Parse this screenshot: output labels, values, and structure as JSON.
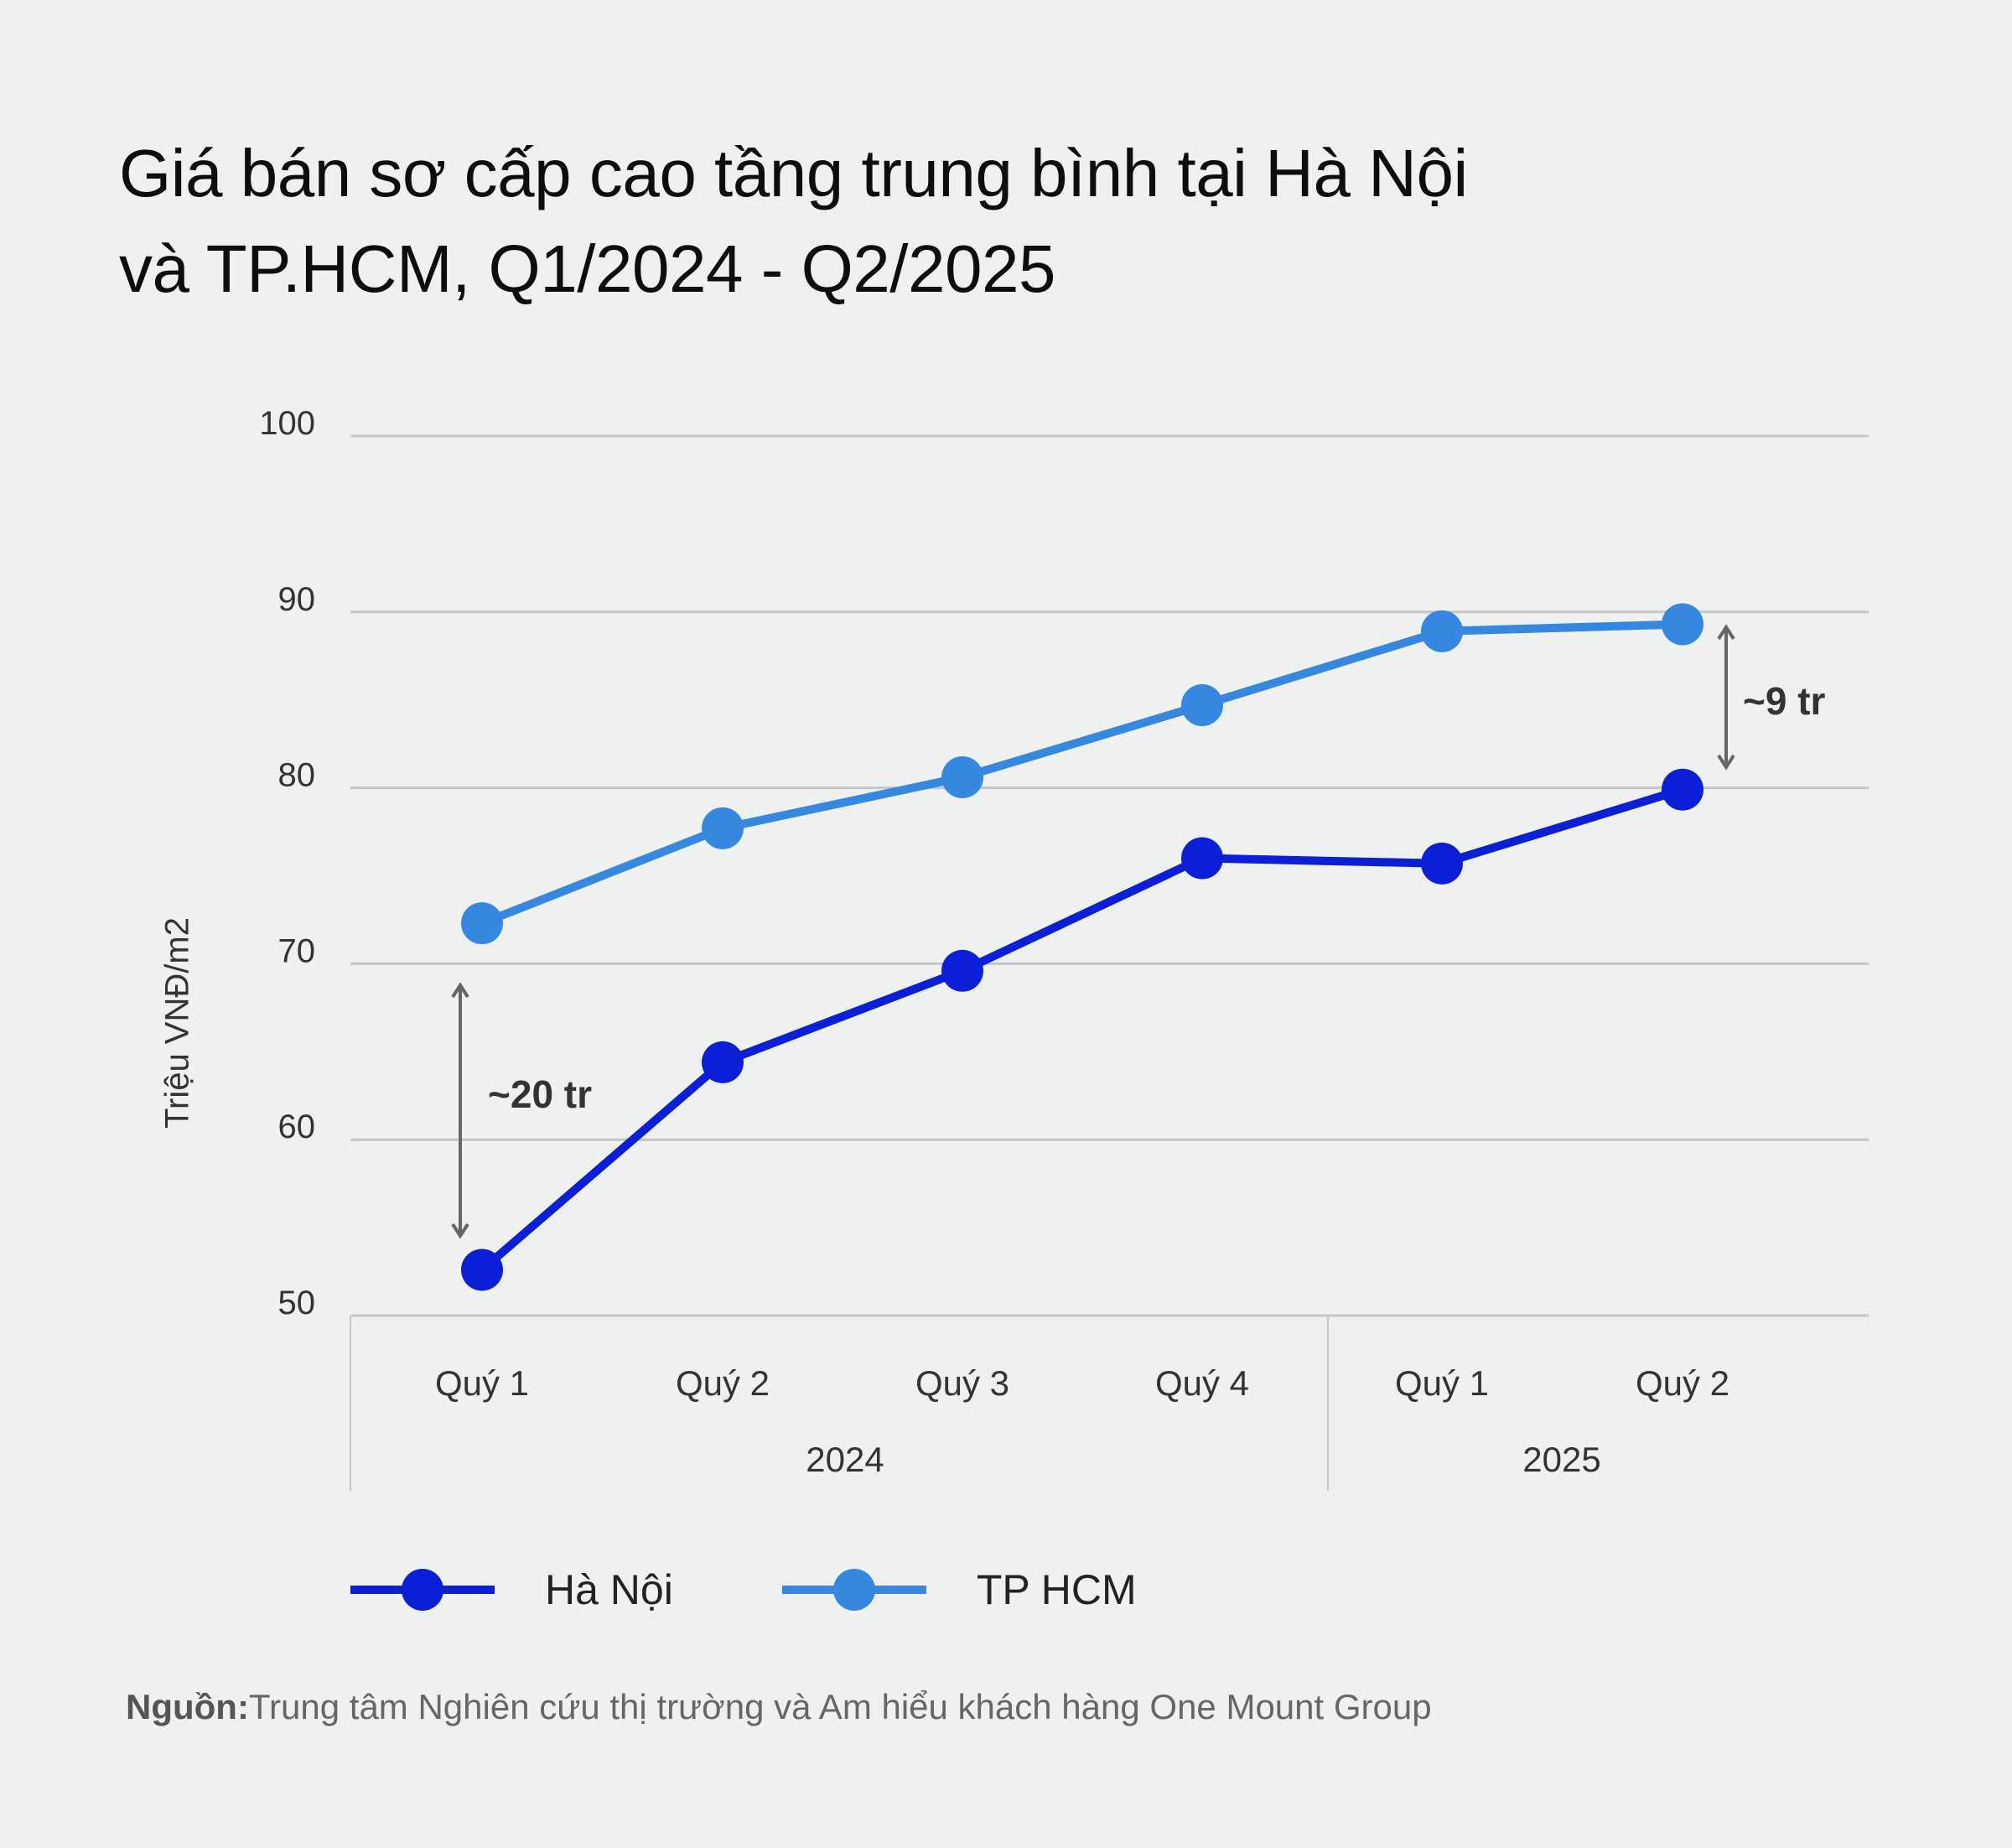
{
  "title": {
    "line1": "Giá bán sơ cấp cao tầng trung bình tại Hà Nội",
    "line2": "và TP.HCM, Q1/2024 - Q2/2025"
  },
  "y_axis": {
    "label": "Triệu VNĐ/m2",
    "ticks": [
      "100",
      "90",
      "80",
      "70",
      "60",
      "50"
    ]
  },
  "x_axis": {
    "quarters": [
      "Quý 1",
      "Quý 2",
      "Quý 3",
      "Quý 4",
      "Quý 1",
      "Quý 2"
    ],
    "years": [
      "2024",
      "2025"
    ]
  },
  "annotations": {
    "start_gap": "~20 tr",
    "end_gap": "~9 tr"
  },
  "legend": [
    {
      "label": "Hà Nội",
      "color": "#0a1fd6"
    },
    {
      "label": "TP HCM",
      "color": "#3587e0"
    }
  ],
  "source": {
    "label": "Nguồn:",
    "text": "Trung tâm Nghiên cứu thị trường và Am hiểu khách hàng One Mount Group"
  },
  "colors": {
    "background": "#eff1f1",
    "hanoi": "#0a1fd6",
    "hcm": "#3587e0",
    "grid": "#c4c6c8",
    "annotation": "#666666"
  },
  "chart_data": {
    "type": "line",
    "title": "Giá bán sơ cấp cao tầng trung bình tại Hà Nội và TP.HCM, Q1/2024 - Q2/2025",
    "categories": [
      "Quý 1 2024",
      "Quý 2 2024",
      "Quý 3 2024",
      "Quý 4 2024",
      "Quý 1 2025",
      "Quý 2 2025"
    ],
    "series": [
      {
        "name": "Hà Nội",
        "values": [
          52.6,
          64.4,
          69.6,
          76.0,
          75.7,
          79.9
        ]
      },
      {
        "name": "TP HCM",
        "values": [
          72.3,
          77.7,
          80.6,
          84.7,
          88.9,
          89.3
        ]
      }
    ],
    "xlabel": "",
    "ylabel": "Triệu VNĐ/m2",
    "ylim": [
      50,
      100
    ],
    "yticks": [
      50,
      60,
      70,
      80,
      90,
      100
    ],
    "grid": true,
    "legend_position": "bottom",
    "annotations": [
      {
        "text": "~20 tr",
        "between": "Quý 1 2024"
      },
      {
        "text": "~9 tr",
        "between": "Quý 2 2025"
      }
    ]
  }
}
